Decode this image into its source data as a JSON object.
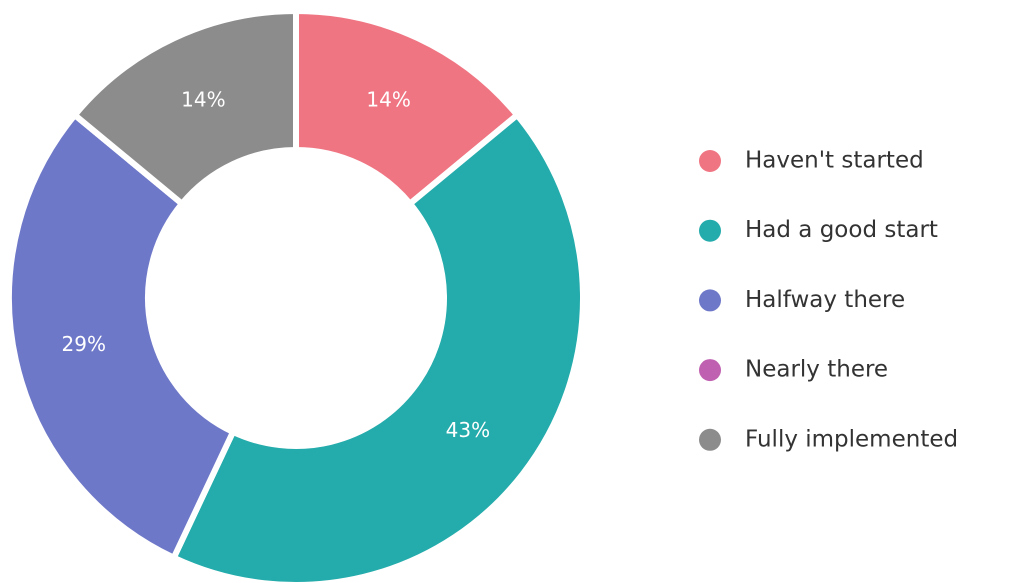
{
  "chart_data": {
    "type": "donut",
    "categories": [
      "Haven't started",
      "Had a good start",
      "Halfway there",
      "Nearly there",
      "Fully implemented"
    ],
    "values": [
      14,
      43,
      29,
      0,
      14
    ],
    "value_labels": [
      "14%",
      "43%",
      "29%",
      null,
      "14%"
    ],
    "colors": [
      "#f07583",
      "#24abab",
      "#6e78c8",
      "#c060b0",
      "#8c8c8c"
    ],
    "legend": "right"
  }
}
